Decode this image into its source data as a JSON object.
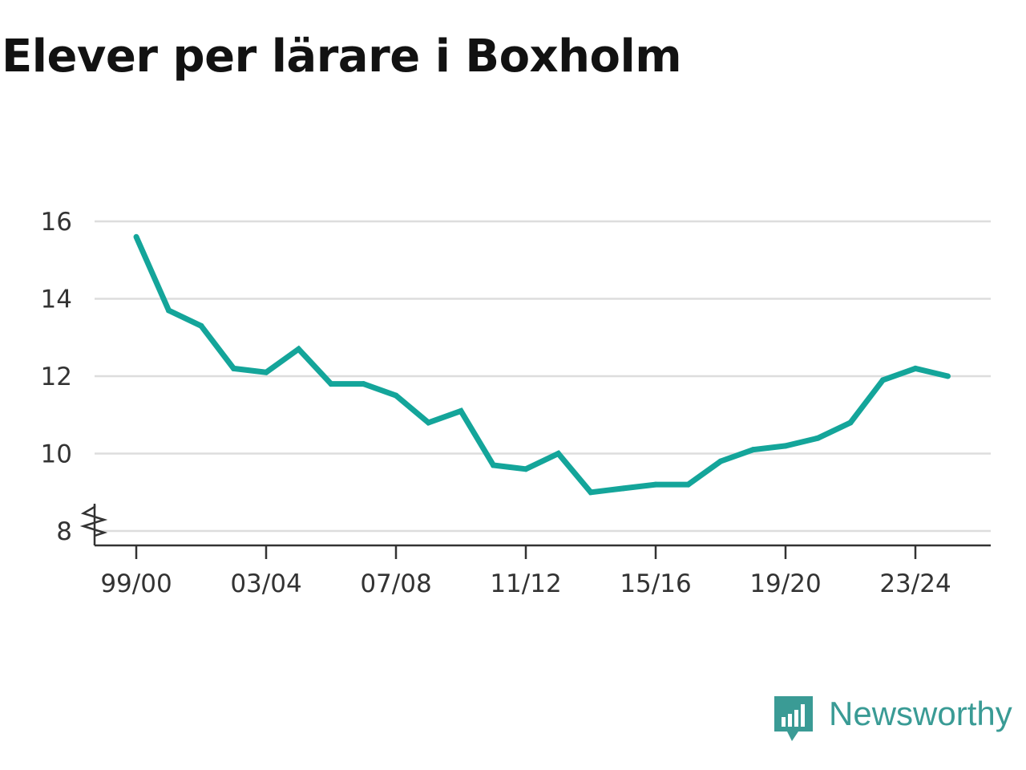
{
  "colors": {
    "line": "#14a59a",
    "grid": "#dddddd",
    "axis": "#333333",
    "brand": "#3a9b95",
    "title": "#121212"
  },
  "brand": {
    "name": "Newsworthy",
    "icon": "bar-chart-speech-bubble-icon"
  },
  "chart_data": {
    "type": "line",
    "title": "Elever per lärare i Boxholm",
    "xlabel": "",
    "ylabel": "",
    "ylim": [
      8,
      16
    ],
    "yticks": [
      8,
      10,
      12,
      14,
      16
    ],
    "y_axis_break": true,
    "grid": true,
    "x": [
      "99/00",
      "00/01",
      "01/02",
      "02/03",
      "03/04",
      "04/05",
      "05/06",
      "06/07",
      "07/08",
      "08/09",
      "09/10",
      "10/11",
      "11/12",
      "12/13",
      "13/14",
      "14/15",
      "15/16",
      "16/17",
      "17/18",
      "18/19",
      "19/20",
      "20/21",
      "21/22",
      "22/23",
      "23/24",
      "24/25"
    ],
    "xtick_labels": [
      "99/00",
      "03/04",
      "07/08",
      "11/12",
      "15/16",
      "19/20",
      "23/24"
    ],
    "series": [
      {
        "values": [
          15.6,
          13.7,
          13.3,
          12.2,
          12.1,
          12.7,
          11.8,
          11.8,
          11.5,
          10.8,
          11.1,
          9.7,
          9.6,
          10.0,
          9.0,
          9.1,
          9.2,
          9.2,
          9.8,
          10.1,
          10.2,
          10.4,
          10.8,
          11.9,
          12.2,
          12.0
        ]
      }
    ]
  }
}
